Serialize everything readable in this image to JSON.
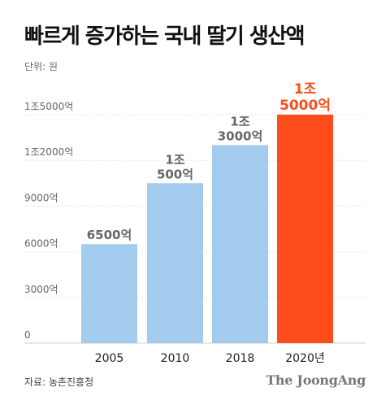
{
  "header": {
    "title": "빠르게 증가하는 국내 딸기 생산액",
    "unit": "단위: 원"
  },
  "footer": {
    "source": "자료: 농촌진흥청",
    "brand": "The JoongAng"
  },
  "colors": {
    "bar": "#a3cbee",
    "highlight": "#ff4c1a",
    "label": "#666666",
    "highlight_label": "#ff4c1a"
  },
  "chart_data": {
    "type": "bar",
    "categories": [
      "2005",
      "2010",
      "2018",
      "2020년"
    ],
    "values": [
      6500,
      10500,
      13000,
      15000
    ],
    "value_labels": [
      [
        "6500억"
      ],
      [
        "1조",
        "500억"
      ],
      [
        "1조",
        "3000억"
      ],
      [
        "1조",
        "5000억"
      ]
    ],
    "y_ticks": [
      0,
      3000,
      6000,
      9000,
      12000,
      15000
    ],
    "y_tick_labels": [
      "0",
      "3000억",
      "6000억",
      "9000억",
      "1조2000억",
      "1조5000억"
    ],
    "ylim": [
      0,
      15000
    ],
    "highlight_index": 3,
    "grid": true
  }
}
